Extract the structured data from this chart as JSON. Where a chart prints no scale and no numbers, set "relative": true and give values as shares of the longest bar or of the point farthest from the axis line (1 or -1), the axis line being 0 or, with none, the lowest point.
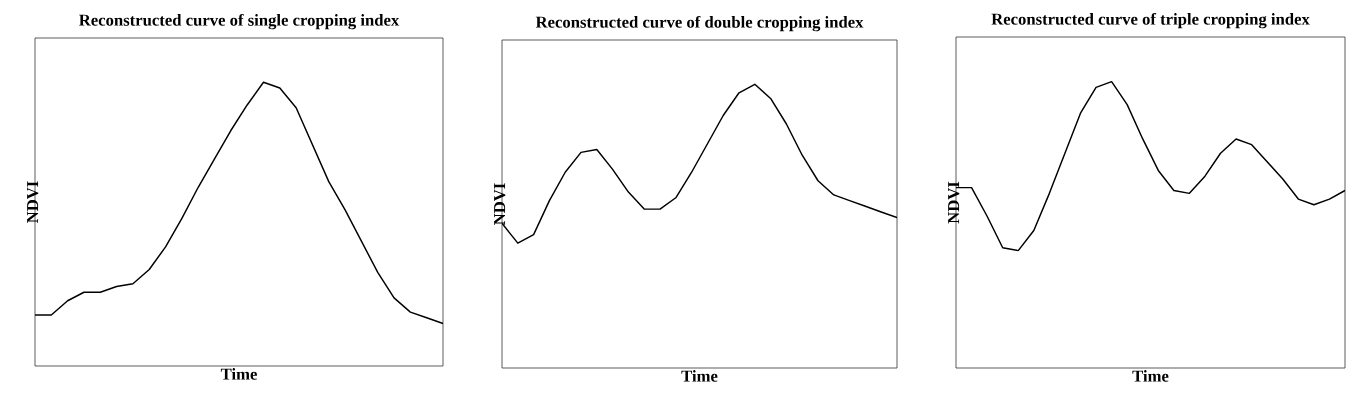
{
  "chart_data": [
    {
      "type": "line",
      "title": "Reconstructed curve of single cropping index",
      "xlabel": "Time",
      "ylabel": "NDVI",
      "relative": true,
      "color": "#000000",
      "line_style": "solid",
      "categories": [
        null,
        null,
        null,
        null,
        null,
        null,
        null,
        null,
        null,
        null,
        null,
        null,
        null,
        null,
        null,
        null,
        null,
        null,
        null,
        null,
        null,
        null,
        null,
        null,
        null,
        null
      ],
      "values": [
        0.18,
        0.18,
        0.23,
        0.26,
        0.26,
        0.28,
        0.29,
        0.34,
        0.42,
        0.52,
        0.63,
        0.73,
        0.83,
        0.92,
        1.0,
        0.98,
        0.91,
        0.78,
        0.65,
        0.55,
        0.44,
        0.33,
        0.24,
        0.19,
        0.17,
        0.15
      ]
    },
    {
      "type": "line",
      "title": "Reconstructed curve of double cropping index",
      "xlabel": "Time",
      "ylabel": "NDVI",
      "relative": true,
      "color": "#000000",
      "line_style": "solid",
      "categories": [
        null,
        null,
        null,
        null,
        null,
        null,
        null,
        null,
        null,
        null,
        null,
        null,
        null,
        null,
        null,
        null,
        null,
        null,
        null,
        null,
        null,
        null,
        null,
        null,
        null,
        null
      ],
      "values": [
        0.51,
        0.44,
        0.47,
        0.59,
        0.69,
        0.76,
        0.77,
        0.7,
        0.62,
        0.56,
        0.56,
        0.6,
        0.69,
        0.79,
        0.89,
        0.97,
        1.0,
        0.95,
        0.86,
        0.75,
        0.66,
        0.61,
        0.59,
        0.57,
        0.55,
        0.53
      ]
    },
    {
      "type": "line",
      "title": "Reconstructed curve of triple cropping index",
      "xlabel": "Time",
      "ylabel": "NDVI",
      "relative": true,
      "color": "#000000",
      "line_style": "solid",
      "categories": [
        null,
        null,
        null,
        null,
        null,
        null,
        null,
        null,
        null,
        null,
        null,
        null,
        null,
        null,
        null,
        null,
        null,
        null,
        null,
        null,
        null,
        null,
        null,
        null,
        null,
        null
      ],
      "values": [
        0.63,
        0.63,
        0.53,
        0.42,
        0.41,
        0.48,
        0.61,
        0.75,
        0.89,
        0.98,
        1.0,
        0.92,
        0.8,
        0.69,
        0.62,
        0.61,
        0.67,
        0.75,
        0.8,
        0.78,
        0.72,
        0.66,
        0.59,
        0.57,
        0.59,
        0.62
      ]
    }
  ]
}
